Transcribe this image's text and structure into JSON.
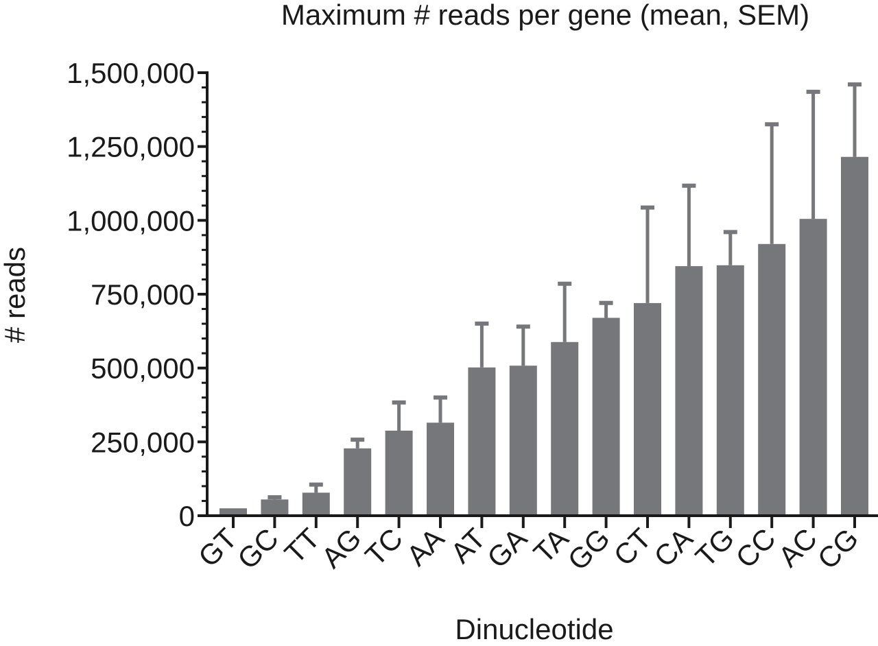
{
  "chart_data": {
    "type": "bar",
    "title": "Maximum # reads per gene (mean,  SEM)",
    "xlabel": "Dinucleotide",
    "ylabel": "# reads",
    "categories": [
      "GT",
      "GC",
      "TT",
      "AG",
      "TC",
      "AA",
      "AT",
      "GA",
      "TA",
      "GG",
      "CT",
      "CA",
      "TG",
      "CC",
      "AC",
      "CG"
    ],
    "values": [
      25000,
      55000,
      78000,
      228000,
      288000,
      315000,
      502000,
      508000,
      588000,
      670000,
      720000,
      845000,
      848000,
      920000,
      1005000,
      1215000
    ],
    "error_upper": [
      25000,
      67000,
      110000,
      262000,
      388000,
      405000,
      655000,
      645000,
      790000,
      725000,
      1048000,
      1122000,
      965000,
      1330000,
      1440000,
      1465000
    ],
    "ylim": [
      0,
      1500000
    ],
    "yticks": [
      0,
      250000,
      500000,
      750000,
      1000000,
      1250000,
      1500000
    ],
    "ytick_labels": [
      "0",
      "250,000",
      "500,000",
      "750,000",
      "1,000,000",
      "1,250,000",
      "1,500,000"
    ],
    "grid": false,
    "bar_color": "#76777b",
    "error_bar_color": "#76777b",
    "axis_color": "#1a1a1a"
  }
}
